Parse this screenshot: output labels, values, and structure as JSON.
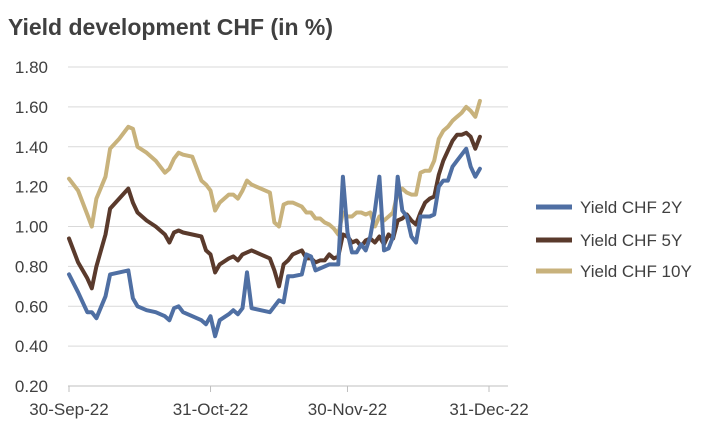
{
  "chart_data": {
    "type": "line",
    "title": "Yield development CHF (in %)",
    "xlabel": "",
    "ylabel": "",
    "ylim": [
      0.2,
      1.8
    ],
    "yticks": [
      "1.80",
      "1.60",
      "1.40",
      "1.20",
      "1.00",
      "0.80",
      "0.60",
      "0.40",
      "0.20"
    ],
    "xticks": [
      "30-Sep-22",
      "31-Oct-22",
      "30-Nov-22",
      "31-Dec-22"
    ],
    "grid": true,
    "legend_position": "right",
    "x": [
      "30-Sep-22",
      "01-Oct-22",
      "04-Oct-22",
      "05-Oct-22",
      "06-Oct-22",
      "07-Oct-22",
      "10-Oct-22",
      "11-Oct-22",
      "12-Oct-22",
      "13-Oct-22",
      "14-Oct-22",
      "17-Oct-22",
      "18-Oct-22",
      "19-Oct-22",
      "20-Oct-22",
      "21-Oct-22",
      "24-Oct-22",
      "25-Oct-22",
      "26-Oct-22",
      "27-Oct-22",
      "28-Oct-22",
      "31-Oct-22",
      "01-Nov-22",
      "02-Nov-22",
      "03-Nov-22",
      "04-Nov-22",
      "07-Nov-22",
      "08-Nov-22",
      "09-Nov-22",
      "10-Nov-22",
      "11-Nov-22",
      "14-Nov-22",
      "15-Nov-22",
      "16-Nov-22",
      "17-Nov-22",
      "18-Nov-22",
      "21-Nov-22",
      "22-Nov-22",
      "23-Nov-22",
      "24-Nov-22",
      "25-Nov-22",
      "28-Nov-22",
      "29-Nov-22",
      "30-Nov-22",
      "01-Dec-22",
      "02-Dec-22",
      "05-Dec-22",
      "06-Dec-22",
      "07-Dec-22",
      "08-Dec-22",
      "09-Dec-22",
      "12-Dec-22",
      "13-Dec-22",
      "14-Dec-22",
      "15-Dec-22",
      "16-Dec-22",
      "19-Dec-22",
      "20-Dec-22",
      "21-Dec-22",
      "22-Dec-22",
      "23-Dec-22",
      "27-Dec-22",
      "28-Dec-22",
      "29-Dec-22",
      "30-Dec-22",
      "31-Dec-22"
    ],
    "series": [
      {
        "name": "Yield CHF 2Y",
        "color": "#4f6fa3",
        "points": [
          [
            "30-Sep-22",
            0.76
          ],
          [
            "02-Oct-22",
            0.67
          ],
          [
            "04-Oct-22",
            0.57
          ],
          [
            "05-Oct-22",
            0.57
          ],
          [
            "06-Oct-22",
            0.54
          ],
          [
            "08-Oct-22",
            0.65
          ],
          [
            "09-Oct-22",
            0.76
          ],
          [
            "11-Oct-22",
            0.77
          ],
          [
            "13-Oct-22",
            0.78
          ],
          [
            "14-Oct-22",
            0.64
          ],
          [
            "15-Oct-22",
            0.6
          ],
          [
            "17-Oct-22",
            0.58
          ],
          [
            "19-Oct-22",
            0.57
          ],
          [
            "21-Oct-22",
            0.55
          ],
          [
            "22-Oct-22",
            0.53
          ],
          [
            "23-Oct-22",
            0.59
          ],
          [
            "24-Oct-22",
            0.6
          ],
          [
            "25-Oct-22",
            0.57
          ],
          [
            "27-Oct-22",
            0.55
          ],
          [
            "29-Oct-22",
            0.53
          ],
          [
            "30-Oct-22",
            0.51
          ],
          [
            "31-Oct-22",
            0.55
          ],
          [
            "01-Nov-22",
            0.45
          ],
          [
            "02-Nov-22",
            0.53
          ],
          [
            "04-Nov-22",
            0.56
          ],
          [
            "05-Nov-22",
            0.58
          ],
          [
            "06-Nov-22",
            0.56
          ],
          [
            "07-Nov-22",
            0.59
          ],
          [
            "08-Nov-22",
            0.77
          ],
          [
            "09-Nov-22",
            0.59
          ],
          [
            "11-Nov-22",
            0.58
          ],
          [
            "13-Nov-22",
            0.57
          ],
          [
            "14-Nov-22",
            0.6
          ],
          [
            "15-Nov-22",
            0.63
          ],
          [
            "16-Nov-22",
            0.62
          ],
          [
            "17-Nov-22",
            0.75
          ],
          [
            "18-Nov-22",
            0.75
          ],
          [
            "20-Nov-22",
            0.76
          ],
          [
            "21-Nov-22",
            0.86
          ],
          [
            "22-Nov-22",
            0.85
          ],
          [
            "23-Nov-22",
            0.78
          ],
          [
            "24-Nov-22",
            0.79
          ],
          [
            "25-Nov-22",
            0.8
          ],
          [
            "26-Nov-22",
            0.81
          ],
          [
            "27-Nov-22",
            0.81
          ],
          [
            "28-Nov-22",
            0.81
          ],
          [
            "29-Nov-22",
            1.25
          ],
          [
            "30-Nov-22",
            0.97
          ],
          [
            "01-Dec-22",
            0.87
          ],
          [
            "02-Dec-22",
            0.87
          ],
          [
            "03-Dec-22",
            0.91
          ],
          [
            "04-Dec-22",
            0.88
          ],
          [
            "05-Dec-22",
            0.95
          ],
          [
            "06-Dec-22",
            1.08
          ],
          [
            "07-Dec-22",
            1.25
          ],
          [
            "08-Dec-22",
            0.88
          ],
          [
            "09-Dec-22",
            0.89
          ],
          [
            "10-Dec-22",
            0.95
          ],
          [
            "11-Dec-22",
            1.25
          ],
          [
            "12-Dec-22",
            1.08
          ],
          [
            "13-Dec-22",
            1.05
          ],
          [
            "14-Dec-22",
            0.95
          ],
          [
            "15-Dec-22",
            0.92
          ],
          [
            "16-Dec-22",
            1.05
          ],
          [
            "17-Dec-22",
            1.05
          ],
          [
            "18-Dec-22",
            1.05
          ],
          [
            "19-Dec-22",
            1.06
          ],
          [
            "20-Dec-22",
            1.2
          ],
          [
            "21-Dec-22",
            1.23
          ],
          [
            "22-Dec-22",
            1.23
          ],
          [
            "23-Dec-22",
            1.3
          ],
          [
            "24-Dec-22",
            1.33
          ],
          [
            "25-Dec-22",
            1.36
          ],
          [
            "26-Dec-22",
            1.39
          ],
          [
            "27-Dec-22",
            1.3
          ],
          [
            "28-Dec-22",
            1.25
          ],
          [
            "29-Dec-22",
            1.29
          ]
        ]
      },
      {
        "name": "Yield CHF 5Y",
        "color": "#5a3a2c",
        "points": [
          [
            "30-Sep-22",
            0.94
          ],
          [
            "02-Oct-22",
            0.82
          ],
          [
            "04-Oct-22",
            0.74
          ],
          [
            "05-Oct-22",
            0.69
          ],
          [
            "06-Oct-22",
            0.8
          ],
          [
            "08-Oct-22",
            0.96
          ],
          [
            "09-Oct-22",
            1.09
          ],
          [
            "11-Oct-22",
            1.14
          ],
          [
            "13-Oct-22",
            1.19
          ],
          [
            "14-Oct-22",
            1.12
          ],
          [
            "15-Oct-22",
            1.07
          ],
          [
            "17-Oct-22",
            1.03
          ],
          [
            "19-Oct-22",
            1.0
          ],
          [
            "21-Oct-22",
            0.96
          ],
          [
            "22-Oct-22",
            0.92
          ],
          [
            "23-Oct-22",
            0.97
          ],
          [
            "24-Oct-22",
            0.98
          ],
          [
            "25-Oct-22",
            0.97
          ],
          [
            "27-Oct-22",
            0.96
          ],
          [
            "29-Oct-22",
            0.95
          ],
          [
            "30-Oct-22",
            0.88
          ],
          [
            "31-Oct-22",
            0.86
          ],
          [
            "01-Nov-22",
            0.77
          ],
          [
            "02-Nov-22",
            0.81
          ],
          [
            "04-Nov-22",
            0.84
          ],
          [
            "05-Nov-22",
            0.85
          ],
          [
            "06-Nov-22",
            0.83
          ],
          [
            "07-Nov-22",
            0.86
          ],
          [
            "08-Nov-22",
            0.87
          ],
          [
            "09-Nov-22",
            0.88
          ],
          [
            "11-Nov-22",
            0.86
          ],
          [
            "13-Nov-22",
            0.84
          ],
          [
            "14-Nov-22",
            0.78
          ],
          [
            "15-Nov-22",
            0.7
          ],
          [
            "16-Nov-22",
            0.81
          ],
          [
            "17-Nov-22",
            0.83
          ],
          [
            "18-Nov-22",
            0.86
          ],
          [
            "20-Nov-22",
            0.88
          ],
          [
            "21-Nov-22",
            0.84
          ],
          [
            "22-Nov-22",
            0.84
          ],
          [
            "23-Nov-22",
            0.82
          ],
          [
            "24-Nov-22",
            0.83
          ],
          [
            "25-Nov-22",
            0.83
          ],
          [
            "26-Nov-22",
            0.86
          ],
          [
            "27-Nov-22",
            0.84
          ],
          [
            "28-Nov-22",
            0.85
          ],
          [
            "29-Nov-22",
            0.96
          ],
          [
            "30-Nov-22",
            0.95
          ],
          [
            "01-Dec-22",
            0.92
          ],
          [
            "02-Dec-22",
            0.93
          ],
          [
            "03-Dec-22",
            0.9
          ],
          [
            "04-Dec-22",
            0.93
          ],
          [
            "05-Dec-22",
            0.94
          ],
          [
            "06-Dec-22",
            0.92
          ],
          [
            "07-Dec-22",
            0.95
          ],
          [
            "08-Dec-22",
            0.91
          ],
          [
            "09-Dec-22",
            0.96
          ],
          [
            "10-Dec-22",
            0.94
          ],
          [
            "11-Dec-22",
            1.03
          ],
          [
            "12-Dec-22",
            1.04
          ],
          [
            "13-Dec-22",
            1.06
          ],
          [
            "14-Dec-22",
            1.03
          ],
          [
            "15-Dec-22",
            1.01
          ],
          [
            "16-Dec-22",
            1.07
          ],
          [
            "17-Dec-22",
            1.12
          ],
          [
            "18-Dec-22",
            1.14
          ],
          [
            "19-Dec-22",
            1.15
          ],
          [
            "20-Dec-22",
            1.26
          ],
          [
            "21-Dec-22",
            1.33
          ],
          [
            "22-Dec-22",
            1.38
          ],
          [
            "23-Dec-22",
            1.43
          ],
          [
            "24-Dec-22",
            1.46
          ],
          [
            "25-Dec-22",
            1.46
          ],
          [
            "26-Dec-22",
            1.47
          ],
          [
            "27-Dec-22",
            1.45
          ],
          [
            "28-Dec-22",
            1.39
          ],
          [
            "29-Dec-22",
            1.45
          ]
        ]
      },
      {
        "name": "Yield CHF 10Y",
        "color": "#c8b27c",
        "points": [
          [
            "30-Sep-22",
            1.24
          ],
          [
            "02-Oct-22",
            1.18
          ],
          [
            "04-Oct-22",
            1.06
          ],
          [
            "05-Oct-22",
            1.0
          ],
          [
            "06-Oct-22",
            1.14
          ],
          [
            "08-Oct-22",
            1.25
          ],
          [
            "09-Oct-22",
            1.39
          ],
          [
            "11-Oct-22",
            1.44
          ],
          [
            "13-Oct-22",
            1.5
          ],
          [
            "14-Oct-22",
            1.49
          ],
          [
            "15-Oct-22",
            1.4
          ],
          [
            "17-Oct-22",
            1.37
          ],
          [
            "19-Oct-22",
            1.33
          ],
          [
            "21-Oct-22",
            1.27
          ],
          [
            "22-Oct-22",
            1.29
          ],
          [
            "23-Oct-22",
            1.34
          ],
          [
            "24-Oct-22",
            1.37
          ],
          [
            "25-Oct-22",
            1.36
          ],
          [
            "27-Oct-22",
            1.35
          ],
          [
            "29-Oct-22",
            1.23
          ],
          [
            "30-Oct-22",
            1.21
          ],
          [
            "31-Oct-22",
            1.18
          ],
          [
            "01-Nov-22",
            1.08
          ],
          [
            "02-Nov-22",
            1.12
          ],
          [
            "04-Nov-22",
            1.16
          ],
          [
            "05-Nov-22",
            1.16
          ],
          [
            "06-Nov-22",
            1.14
          ],
          [
            "07-Nov-22",
            1.18
          ],
          [
            "08-Nov-22",
            1.23
          ],
          [
            "09-Nov-22",
            1.21
          ],
          [
            "11-Nov-22",
            1.19
          ],
          [
            "13-Nov-22",
            1.17
          ],
          [
            "14-Nov-22",
            1.02
          ],
          [
            "15-Nov-22",
            1.0
          ],
          [
            "16-Nov-22",
            1.11
          ],
          [
            "17-Nov-22",
            1.12
          ],
          [
            "18-Nov-22",
            1.12
          ],
          [
            "20-Nov-22",
            1.1
          ],
          [
            "21-Nov-22",
            1.07
          ],
          [
            "22-Nov-22",
            1.07
          ],
          [
            "23-Nov-22",
            1.04
          ],
          [
            "24-Nov-22",
            1.04
          ],
          [
            "25-Nov-22",
            1.02
          ],
          [
            "26-Nov-22",
            1.01
          ],
          [
            "27-Nov-22",
            0.99
          ],
          [
            "28-Nov-22",
            0.96
          ],
          [
            "29-Nov-22",
            1.07
          ],
          [
            "30-Nov-22",
            1.05
          ],
          [
            "01-Dec-22",
            1.05
          ],
          [
            "02-Dec-22",
            1.07
          ],
          [
            "03-Dec-22",
            1.07
          ],
          [
            "04-Dec-22",
            1.06
          ],
          [
            "05-Dec-22",
            1.07
          ],
          [
            "06-Dec-22",
            1.0
          ],
          [
            "07-Dec-22",
            1.05
          ],
          [
            "08-Dec-22",
            1.03
          ],
          [
            "09-Dec-22",
            1.05
          ],
          [
            "10-Dec-22",
            1.07
          ],
          [
            "11-Dec-22",
            1.17
          ],
          [
            "12-Dec-22",
            1.19
          ],
          [
            "13-Dec-22",
            1.17
          ],
          [
            "14-Dec-22",
            1.16
          ],
          [
            "15-Dec-22",
            1.16
          ],
          [
            "16-Dec-22",
            1.27
          ],
          [
            "17-Dec-22",
            1.28
          ],
          [
            "18-Dec-22",
            1.28
          ],
          [
            "19-Dec-22",
            1.33
          ],
          [
            "20-Dec-22",
            1.44
          ],
          [
            "21-Dec-22",
            1.48
          ],
          [
            "22-Dec-22",
            1.5
          ],
          [
            "23-Dec-22",
            1.53
          ],
          [
            "24-Dec-22",
            1.55
          ],
          [
            "25-Dec-22",
            1.57
          ],
          [
            "26-Dec-22",
            1.6
          ],
          [
            "27-Dec-22",
            1.58
          ],
          [
            "28-Dec-22",
            1.55
          ],
          [
            "29-Dec-22",
            1.63
          ]
        ]
      }
    ]
  }
}
